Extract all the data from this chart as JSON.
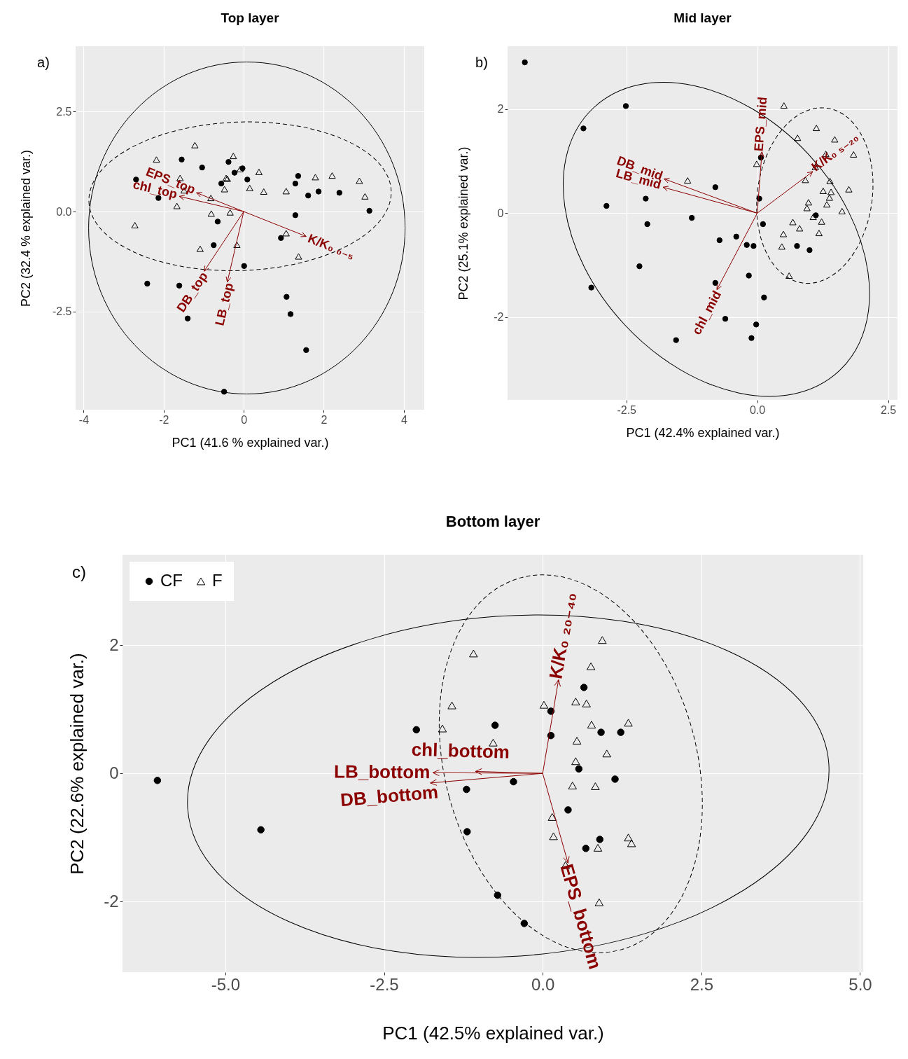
{
  "chart_data": [
    {
      "type": "scatter",
      "title": "Top layer",
      "xlabel": "PC1 (41.6 % explained var.)",
      "ylabel": "PC2 (32.4 % explained var.)",
      "annotations": [
        "a)",
        "EPS_top",
        "chl_top",
        "K/K₀ ₀₋₅",
        "DB_top",
        "LB_top"
      ],
      "xlim": [
        -4.2,
        4.51
      ],
      "ylim": [
        -4.95,
        4.13
      ],
      "xticks": [
        -4,
        -2,
        0,
        2,
        4
      ],
      "yticks": [
        -2.5,
        {
          "value": 0,
          "label": "0.0"
        },
        2.5
      ],
      "grid": true,
      "series": [
        {
          "color": "#000000",
          "marker": "circle",
          "x": [
            -2.69,
            -2.13,
            -1.55,
            -1.04,
            -0.38,
            -0.03,
            -0.23,
            0.09,
            -0.56,
            1.36,
            1.29,
            1.61,
            1.87,
            2.39,
            3.14,
            1.29,
            -0.65,
            -0.75,
            0.01,
            0.93,
            -2.41,
            -1.61,
            -1.4,
            1.07,
            1.17,
            1.56,
            -0.49
          ],
          "values": [
            0.8,
            0.34,
            1.3,
            1.1,
            1.24,
            1.08,
            0.97,
            0.8,
            0.7,
            0.89,
            0.7,
            0.4,
            0.5,
            0.47,
            0.02,
            -0.09,
            -0.25,
            -0.84,
            -1.36,
            -0.66,
            -1.8,
            -1.85,
            -2.67,
            -2.13,
            -2.56,
            -3.46,
            -4.5
          ]
        },
        {
          "color": "#000000",
          "marker": "triangle",
          "x": [
            -1.22,
            -2.18,
            -1.59,
            -0.26,
            -0.09,
            -0.44,
            -0.41,
            0.38,
            -0.48,
            0.15,
            -1.49,
            0.5,
            1.06,
            1.79,
            2.21,
            2.89,
            3.03,
            -0.82,
            -1.67,
            -2.72,
            -0.81,
            -0.34,
            1.06,
            -1.09,
            -0.17,
            1.37
          ],
          "values": [
            1.66,
            1.3,
            0.84,
            1.39,
            1.06,
            0.84,
            0.82,
            0.99,
            0.56,
            0.59,
            0.53,
            0.5,
            0.51,
            0.86,
            0.9,
            0.77,
            0.38,
            0.34,
            0.14,
            -0.34,
            -0.05,
            -0.02,
            -0.54,
            -0.93,
            -0.83,
            -1.12
          ]
        }
      ]
    },
    {
      "type": "scatter",
      "title": "Mid layer",
      "xlabel": "PC1 (42.4% explained var.)",
      "ylabel": "PC2 (25.1% explained var.)",
      "annotations": [
        "b)",
        "DB_mid",
        "LB_mid",
        "EPS_mid",
        "K/K₀ ₅₋₂₀",
        "chl_mid"
      ],
      "xlim": [
        -4.77,
        2.68
      ],
      "ylim": [
        -3.59,
        3.21
      ],
      "xticks": [
        -2.5,
        {
          "value": 0,
          "label": "0.0"
        },
        2.5
      ],
      "yticks": [
        -2,
        0,
        2
      ],
      "grid": true,
      "series": [
        {
          "color": "#000000",
          "marker": "circle",
          "x": [
            -4.44,
            -2.51,
            -3.32,
            -0.8,
            -2.13,
            -2.88,
            0.07,
            0.04,
            -1.25,
            -2.1,
            0.11,
            1.12,
            -0.4,
            -0.72,
            -0.2,
            -0.07,
            0.76,
            1.0,
            -2.25,
            -3.17,
            -0.16,
            -0.8,
            0.13,
            -0.61,
            -0.02,
            -0.11,
            -1.55
          ],
          "values": [
            2.9,
            2.06,
            1.63,
            0.5,
            0.28,
            0.14,
            1.07,
            0.28,
            -0.09,
            -0.21,
            -0.21,
            -0.04,
            -0.45,
            -0.52,
            -0.61,
            -0.63,
            -0.63,
            -0.71,
            -1.02,
            -1.43,
            -1.2,
            -1.34,
            -1.62,
            -2.03,
            -2.14,
            -2.4,
            -2.44
          ]
        },
        {
          "color": "#000000",
          "marker": "triangle",
          "x": [
            0.51,
            1.13,
            0.77,
            1.48,
            1.31,
            1.84,
            -0.01,
            1.11,
            -1.33,
            0.92,
            1.39,
            1.26,
            1.41,
            1.38,
            1.75,
            0.98,
            1.33,
            0.95,
            1.62,
            1.07,
            1.23,
            0.68,
            0.81,
            0.5,
            1.18,
            0.47,
            0.61
          ],
          "values": [
            2.07,
            1.64,
            1.45,
            1.42,
            1.14,
            1.13,
            0.95,
            0.89,
            0.63,
            0.64,
            0.62,
            0.43,
            0.41,
            0.3,
            0.46,
            0.21,
            0.17,
            0.1,
            0.04,
            -0.07,
            -0.16,
            -0.17,
            -0.29,
            -0.4,
            -0.38,
            -0.64,
            -1.2
          ]
        }
      ]
    },
    {
      "type": "scatter",
      "title": "Bottom layer",
      "xlabel": "PC1 (42.5% explained var.)",
      "ylabel": "PC2 (22.6% explained var.)",
      "annotations": [
        "c)",
        "K/K₀ ₂₀₋₄₀",
        "chl_bottom",
        "LB_bottom",
        "DB_bottom",
        "EPS_bottom"
      ],
      "xlim": [
        -6.62,
        5.05
      ],
      "ylim": [
        -3.1,
        3.41
      ],
      "xticks": [
        {
          "value": -5,
          "label": "-5.0"
        },
        -2.5,
        {
          "value": 0,
          "label": "0.0"
        },
        2.5,
        {
          "value": 5,
          "label": "5.0"
        }
      ],
      "yticks": [
        -2,
        0,
        2
      ],
      "grid": true,
      "legend": "top left",
      "series": [
        {
          "name": "CF",
          "color": "#000000",
          "marker": "circle",
          "x": [
            -6.07,
            -4.44,
            -1.99,
            -0.75,
            0.13,
            0.65,
            0.13,
            0.92,
            1.23,
            0.57,
            1.14,
            -0.46,
            -1.2,
            0.4,
            -1.19,
            0.9,
            0.68,
            -0.71,
            -0.29
          ],
          "values": [
            -0.11,
            -0.88,
            0.68,
            0.75,
            0.97,
            1.34,
            0.59,
            0.64,
            0.64,
            0.07,
            -0.09,
            -0.13,
            -0.25,
            -0.57,
            -0.91,
            -1.03,
            -1.17,
            -1.9,
            -2.34
          ]
        },
        {
          "name": "F",
          "color": "#000000",
          "marker": "triangle",
          "x": [
            0.94,
            -1.09,
            0.76,
            0.02,
            0.52,
            0.69,
            -1.43,
            1.35,
            0.77,
            -1.58,
            -0.78,
            0.54,
            1.01,
            0.52,
            0.47,
            0.83,
            0.15,
            0.17,
            1.35,
            1.4,
            0.87,
            0.36,
            0.89
          ],
          "values": [
            2.08,
            1.87,
            1.67,
            1.07,
            1.12,
            1.09,
            1.06,
            0.79,
            0.76,
            0.7,
            0.48,
            0.51,
            0.31,
            0.19,
            -0.19,
            -0.2,
            -0.68,
            -0.98,
            -1.0,
            -1.09,
            -1.16,
            -1.43,
            -2.01
          ]
        }
      ]
    }
  ]
}
